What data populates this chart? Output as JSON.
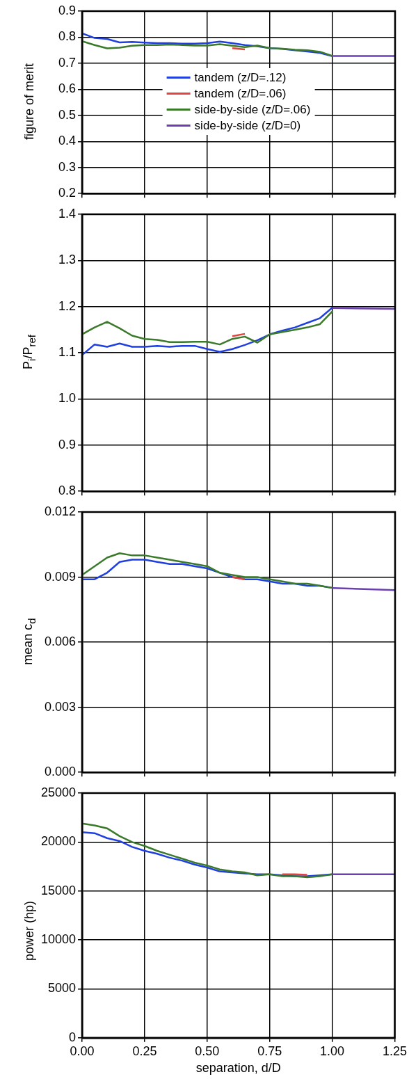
{
  "chart_data": [
    {
      "type": "line",
      "ylabel": "figure of merit",
      "xlim": [
        0,
        1.25
      ],
      "xticks": [
        {
          "value": 0,
          "label": null
        },
        {
          "value": 0.25,
          "label": null
        },
        {
          "value": 0.5,
          "label": null
        },
        {
          "value": 0.75,
          "label": null
        },
        {
          "value": 1,
          "label": null
        },
        {
          "value": 1.25,
          "label": null
        }
      ],
      "ylim": [
        0.2,
        0.9
      ],
      "yticks": [
        0.2,
        0.3,
        0.4,
        0.5,
        0.6,
        0.7,
        0.8,
        0.9
      ],
      "grid": true,
      "legend": "center",
      "tick_labels": "y",
      "series": [
        {
          "name": "tandem (z/D=.12)",
          "color": "#1f3fdf",
          "x": [
            0,
            0.05,
            0.1,
            0.15,
            0.2,
            0.25,
            0.3,
            0.35,
            0.4,
            0.45,
            0.5,
            0.55,
            0.6,
            0.65,
            0.7,
            0.75,
            0.8,
            0.85,
            0.9,
            0.95,
            1.0
          ],
          "values": [
            0.815,
            0.797,
            0.793,
            0.78,
            0.782,
            0.779,
            0.777,
            0.777,
            0.775,
            0.775,
            0.777,
            0.783,
            0.777,
            0.77,
            0.765,
            0.758,
            0.755,
            0.75,
            0.745,
            0.74,
            0.727
          ]
        },
        {
          "name": "tandem (z/D=.06)",
          "color": "#e0443a",
          "x": [
            0.6,
            0.65
          ],
          "values": [
            0.758,
            0.753
          ]
        },
        {
          "name": "side-by-side (z/D=.06)",
          "color": "#3a7a2a",
          "x": [
            0,
            0.05,
            0.1,
            0.15,
            0.2,
            0.25,
            0.3,
            0.35,
            0.4,
            0.45,
            0.5,
            0.55,
            0.6,
            0.65,
            0.7,
            0.75,
            0.8,
            0.85,
            0.9,
            0.95,
            1.0
          ],
          "values": [
            0.785,
            0.77,
            0.757,
            0.76,
            0.767,
            0.77,
            0.77,
            0.772,
            0.77,
            0.768,
            0.768,
            0.773,
            0.767,
            0.762,
            0.768,
            0.758,
            0.756,
            0.752,
            0.75,
            0.744,
            0.728
          ]
        },
        {
          "name": "side-by-side (z/D=0)",
          "color": "#6a3fb0",
          "x": [
            1.0,
            1.25
          ],
          "values": [
            0.728,
            0.728
          ]
        }
      ]
    },
    {
      "type": "line",
      "ylabel": "P$_{i}$/P$_{ref}$",
      "xlim": [
        0,
        1.25
      ],
      "xticks": [
        {
          "value": 0,
          "label": null
        },
        {
          "value": 0.25,
          "label": null
        },
        {
          "value": 0.5,
          "label": null
        },
        {
          "value": 0.75,
          "label": null
        },
        {
          "value": 1,
          "label": null
        },
        {
          "value": 1.25,
          "label": null
        }
      ],
      "ylim": [
        0.8,
        1.4
      ],
      "yticks": [
        0.8,
        0.9,
        {
          "value": 1,
          "label": "1.0"
        },
        1.1,
        1.2,
        1.3,
        1.4
      ],
      "grid": true,
      "tick_labels": "y",
      "series": [
        {
          "color": "#1f3fdf",
          "x": [
            0,
            0.05,
            0.1,
            0.15,
            0.2,
            0.25,
            0.3,
            0.35,
            0.4,
            0.45,
            0.5,
            0.55,
            0.6,
            0.65,
            0.7,
            0.75,
            0.8,
            0.85,
            0.9,
            0.95,
            1.0
          ],
          "values": [
            1.095,
            1.118,
            1.113,
            1.12,
            1.113,
            1.113,
            1.115,
            1.113,
            1.115,
            1.115,
            1.108,
            1.102,
            1.108,
            1.117,
            1.127,
            1.14,
            1.148,
            1.155,
            1.165,
            1.175,
            1.198
          ]
        },
        {
          "color": "#e0443a",
          "x": [
            0.6,
            0.65
          ],
          "values": [
            1.136,
            1.141
          ]
        },
        {
          "color": "#3a7a2a",
          "x": [
            0,
            0.05,
            0.1,
            0.15,
            0.2,
            0.25,
            0.3,
            0.35,
            0.4,
            0.45,
            0.5,
            0.55,
            0.6,
            0.65,
            0.7,
            0.75,
            0.8,
            0.85,
            0.9,
            0.95,
            1.0
          ],
          "values": [
            1.14,
            1.155,
            1.167,
            1.153,
            1.137,
            1.13,
            1.128,
            1.123,
            1.123,
            1.124,
            1.124,
            1.118,
            1.13,
            1.135,
            1.122,
            1.14,
            1.145,
            1.15,
            1.155,
            1.162,
            1.19
          ]
        },
        {
          "color": "#6a3fb0",
          "x": [
            1.0,
            1.25
          ],
          "values": [
            1.197,
            1.195
          ]
        }
      ]
    },
    {
      "type": "line",
      "ylabel": "mean c$_{d}$",
      "xlim": [
        0,
        1.25
      ],
      "xticks": [
        {
          "value": 0,
          "label": null
        },
        {
          "value": 0.25,
          "label": null
        },
        {
          "value": 0.5,
          "label": null
        },
        {
          "value": 0.75,
          "label": null
        },
        {
          "value": 1,
          "label": null
        },
        {
          "value": 1.25,
          "label": null
        }
      ],
      "ylim": [
        0,
        0.012
      ],
      "yticks": [
        {
          "value": 0,
          "label": "0.000"
        },
        {
          "value": 0.003,
          "label": "0.003"
        },
        {
          "value": 0.006,
          "label": "0.006"
        },
        {
          "value": 0.009,
          "label": "0.009"
        },
        {
          "value": 0.012,
          "label": "0.012"
        }
      ],
      "grid": true,
      "tick_labels": "y",
      "series": [
        {
          "color": "#1f3fdf",
          "x": [
            0,
            0.05,
            0.1,
            0.15,
            0.2,
            0.25,
            0.3,
            0.35,
            0.4,
            0.45,
            0.5,
            0.55,
            0.6,
            0.65,
            0.7,
            0.75,
            0.8,
            0.85,
            0.9,
            0.95,
            1.0
          ],
          "values": [
            0.0089,
            0.0089,
            0.0092,
            0.0097,
            0.0098,
            0.0098,
            0.0097,
            0.0096,
            0.0096,
            0.0095,
            0.0094,
            0.0092,
            0.009,
            0.0089,
            0.0089,
            0.0088,
            0.0087,
            0.0087,
            0.0086,
            0.0086,
            0.0085
          ]
        },
        {
          "color": "#e0443a",
          "x": [
            0.6,
            0.65
          ],
          "values": [
            0.009,
            0.0089
          ]
        },
        {
          "color": "#3a7a2a",
          "x": [
            0,
            0.05,
            0.1,
            0.15,
            0.2,
            0.25,
            0.3,
            0.35,
            0.4,
            0.45,
            0.5,
            0.55,
            0.6,
            0.65,
            0.7,
            0.75,
            0.8,
            0.85,
            0.9,
            0.95,
            1.0
          ],
          "values": [
            0.0091,
            0.0095,
            0.0099,
            0.0101,
            0.01,
            0.01,
            0.0099,
            0.0098,
            0.0097,
            0.0096,
            0.0095,
            0.0092,
            0.0091,
            0.009,
            0.009,
            0.0089,
            0.0088,
            0.0087,
            0.0087,
            0.0086,
            0.0085
          ]
        },
        {
          "color": "#6a3fb0",
          "x": [
            1.0,
            1.25
          ],
          "values": [
            0.0085,
            0.0084
          ]
        }
      ]
    },
    {
      "type": "line",
      "ylabel": "power (hp)",
      "xlabel": "separation, d/D",
      "xlim": [
        0,
        1.25
      ],
      "xticks": [
        {
          "value": 0,
          "label": "0.00"
        },
        {
          "value": 0.25,
          "label": "0.25"
        },
        {
          "value": 0.5,
          "label": "0.50"
        },
        {
          "value": 0.75,
          "label": "0.75"
        },
        {
          "value": 1,
          "label": "1.00"
        },
        {
          "value": 1.25,
          "label": "1.25"
        }
      ],
      "ylim": [
        0,
        25000
      ],
      "yticks": [
        0,
        5000,
        10000,
        15000,
        20000,
        25000
      ],
      "grid": true,
      "series": [
        {
          "color": "#1f3fdf",
          "x": [
            0,
            0.05,
            0.1,
            0.15,
            0.2,
            0.25,
            0.3,
            0.35,
            0.4,
            0.45,
            0.5,
            0.55,
            0.6,
            0.65,
            0.7,
            0.75,
            0.8,
            0.85,
            0.9,
            0.95,
            1.0
          ],
          "values": [
            21000,
            20900,
            20400,
            20100,
            19500,
            19100,
            18800,
            18400,
            18100,
            17700,
            17400,
            17000,
            16900,
            16800,
            16700,
            16700,
            16600,
            16500,
            16500,
            16600,
            16700
          ]
        },
        {
          "color": "#e0443a",
          "x": [
            0.8,
            0.85,
            0.9
          ],
          "values": [
            16700,
            16700,
            16650
          ]
        },
        {
          "color": "#3a7a2a",
          "x": [
            0,
            0.05,
            0.1,
            0.15,
            0.2,
            0.25,
            0.3,
            0.35,
            0.4,
            0.45,
            0.5,
            0.55,
            0.6,
            0.65,
            0.7,
            0.75,
            0.8,
            0.85,
            0.9,
            0.95,
            1.0
          ],
          "values": [
            21900,
            21700,
            21400,
            20600,
            20000,
            19600,
            19100,
            18700,
            18300,
            17900,
            17600,
            17200,
            17000,
            16900,
            16600,
            16700,
            16500,
            16500,
            16400,
            16500,
            16700
          ]
        },
        {
          "color": "#6a3fb0",
          "x": [
            1.0,
            1.25
          ],
          "values": [
            16700,
            16700
          ]
        }
      ]
    }
  ]
}
